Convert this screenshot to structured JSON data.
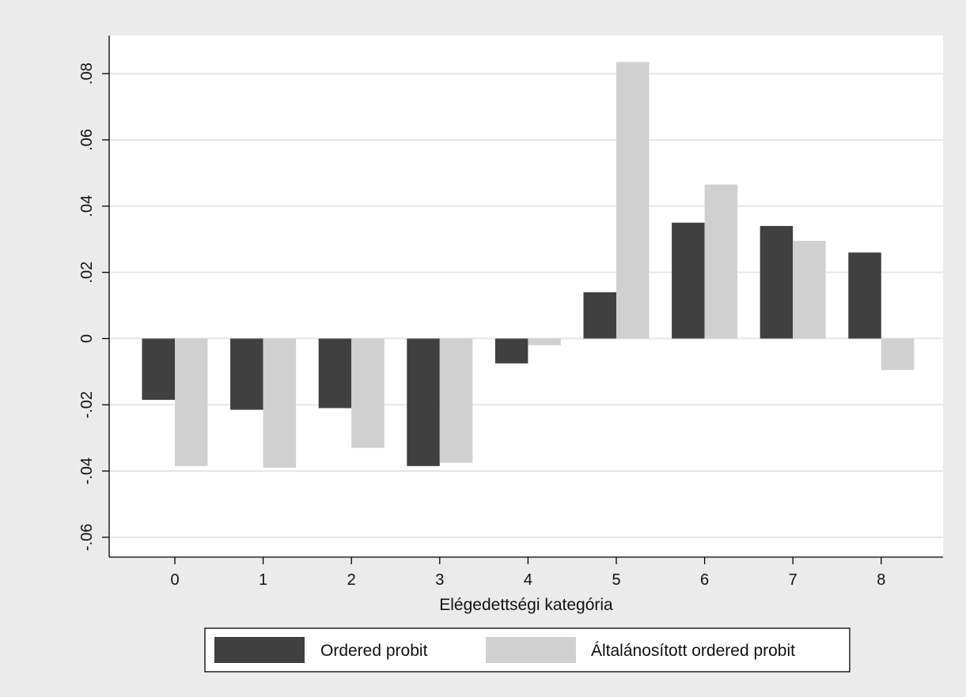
{
  "chart_data": {
    "type": "bar",
    "title": "",
    "xlabel": "Elégedettségi kategória",
    "ylabel": "",
    "categories": [
      "0",
      "1",
      "2",
      "3",
      "4",
      "5",
      "6",
      "7",
      "8"
    ],
    "series": [
      {
        "name": "Ordered probit",
        "color": "#404040",
        "values": [
          -0.0185,
          -0.0215,
          -0.021,
          -0.0385,
          -0.0075,
          0.014,
          0.035,
          0.034,
          0.026
        ]
      },
      {
        "name": "Általánosított ordered probit",
        "color": "#d0d0d0",
        "values": [
          -0.0385,
          -0.039,
          -0.033,
          -0.0375,
          -0.002,
          0.0835,
          0.0465,
          0.0295,
          -0.0095
        ]
      }
    ],
    "ylim": [
      -0.066,
      0.0915
    ],
    "yticks": [
      -0.06,
      -0.04,
      -0.02,
      0,
      0.02,
      0.04,
      0.06,
      0.08
    ],
    "ytick_labels": [
      "-.06",
      "-.04",
      "-.02",
      "0",
      ".02",
      ".04",
      ".06",
      ".08"
    ],
    "grid": true,
    "legend_position": "bottom"
  },
  "colors": {
    "outer_background": "#ebebeb",
    "plot_background": "#ffffff",
    "gridline": "#e6e6e6"
  }
}
